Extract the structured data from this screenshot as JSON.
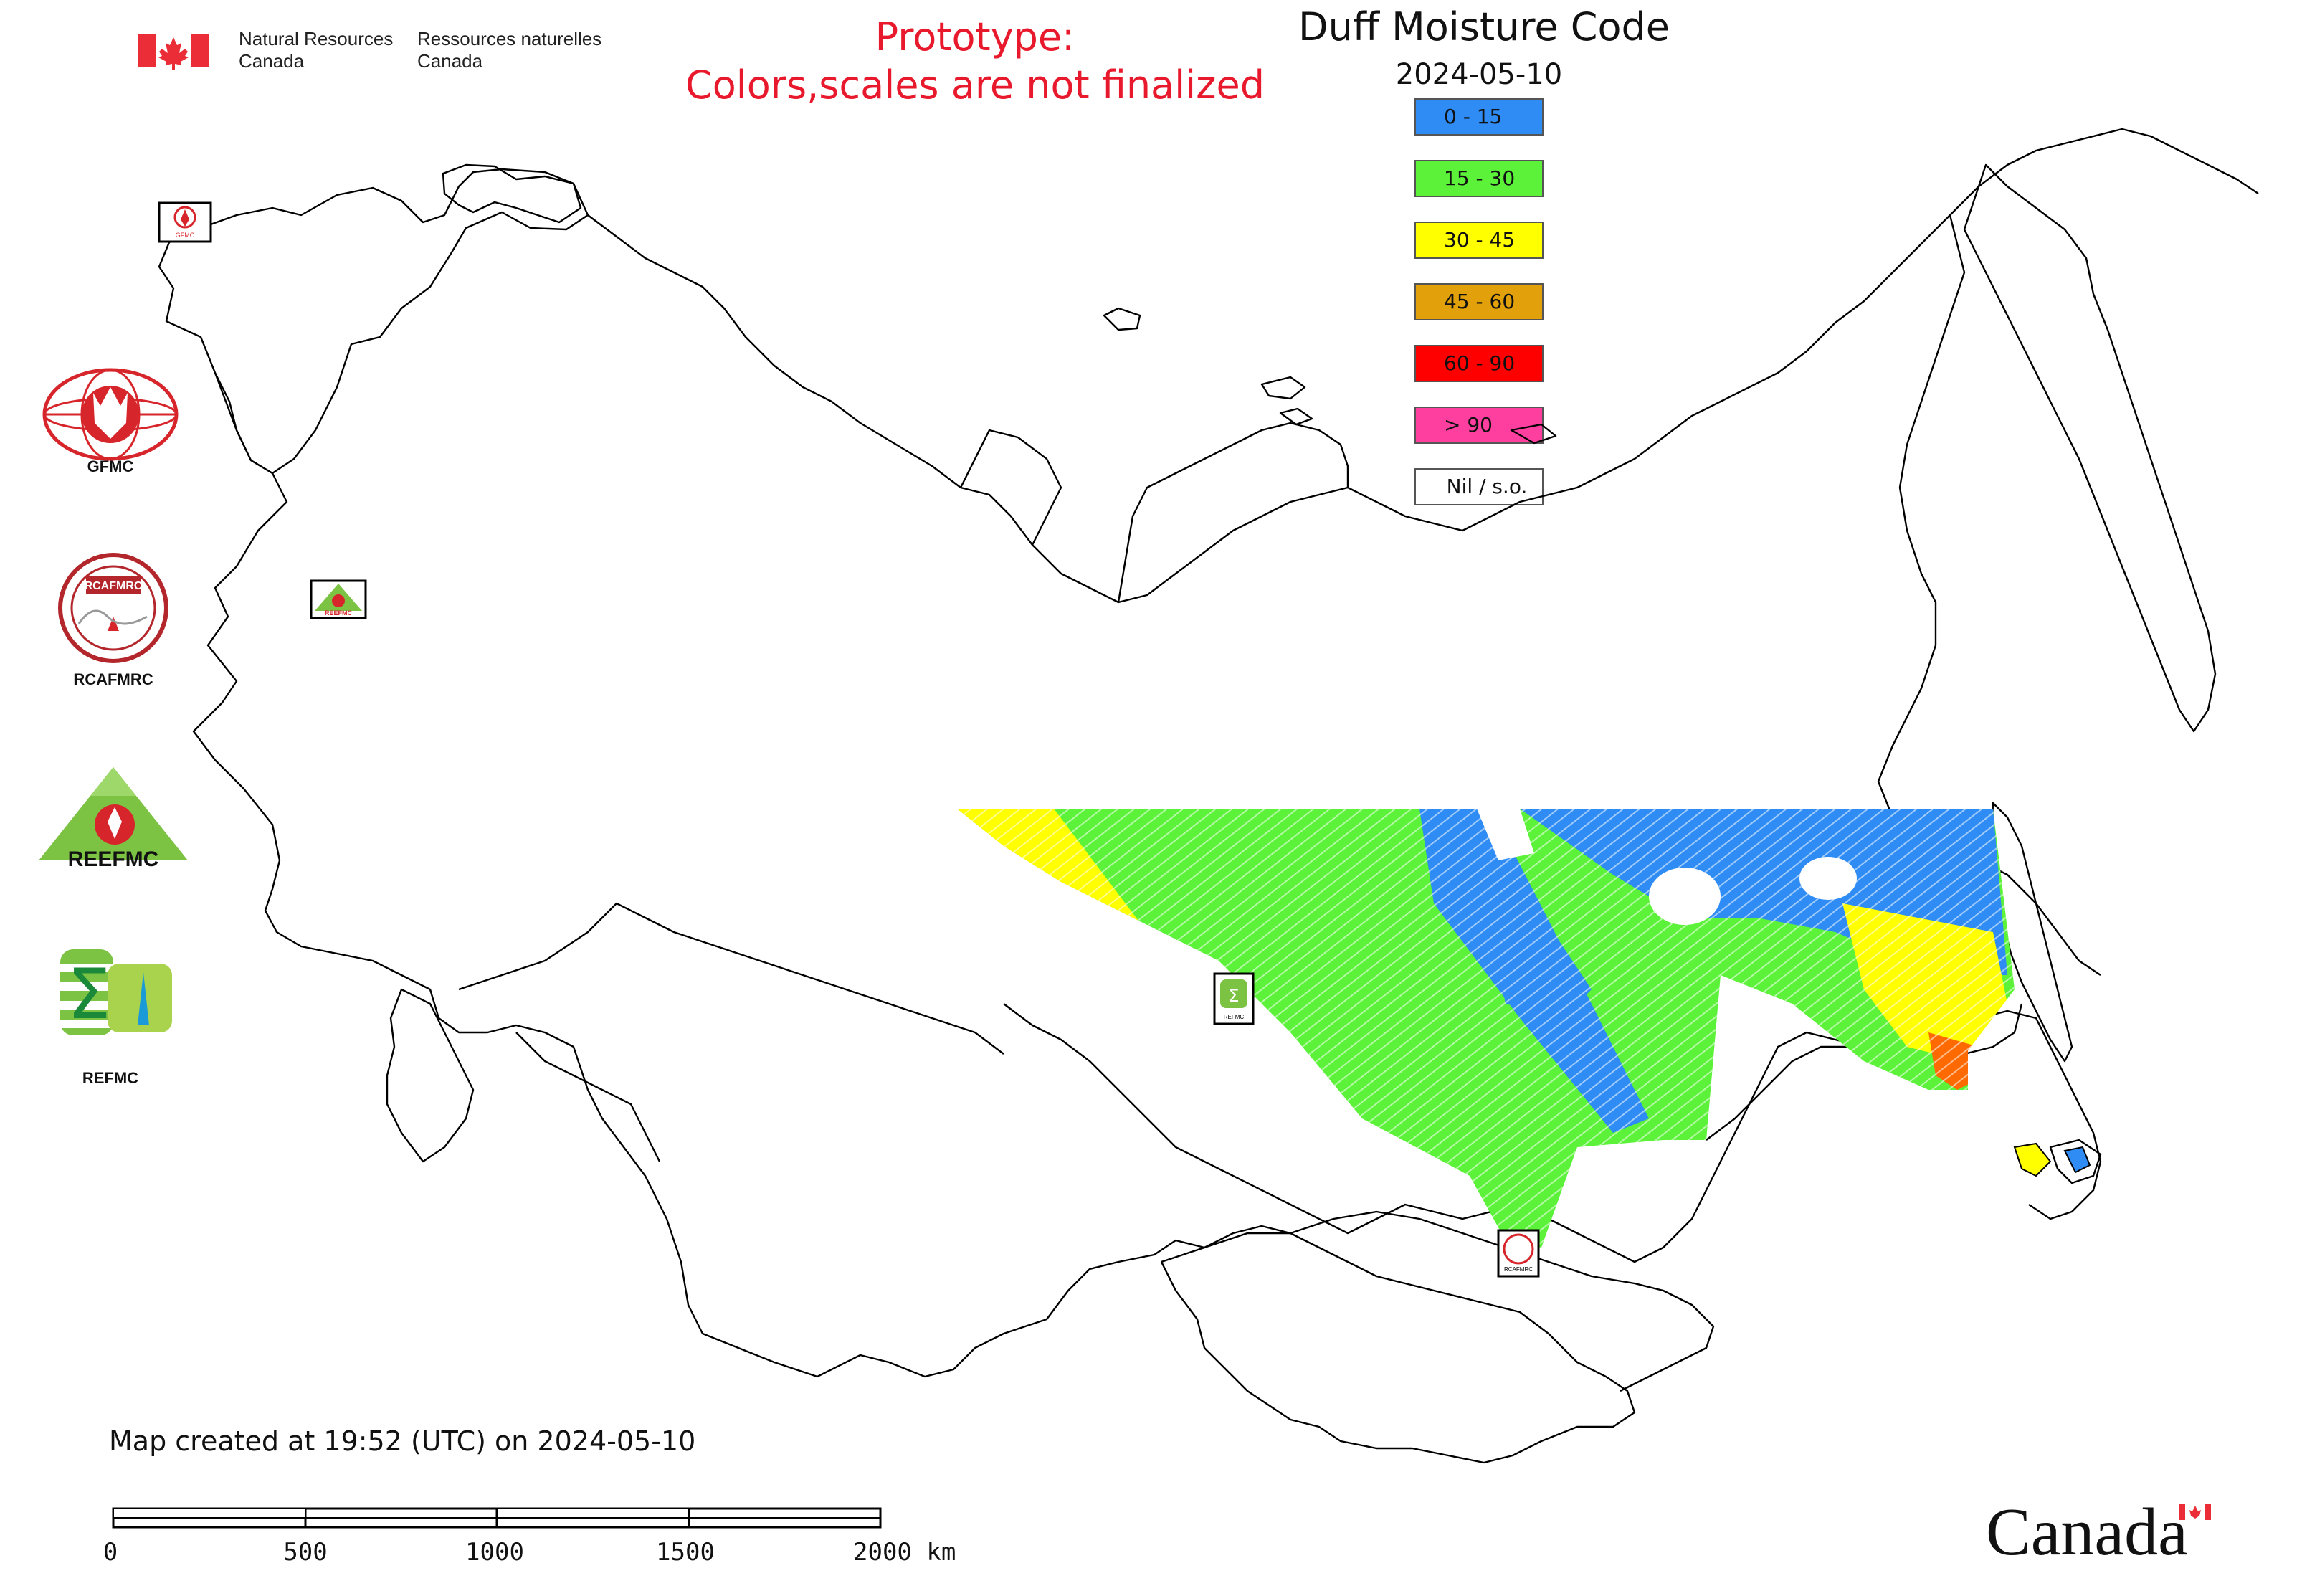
{
  "header": {
    "org_en": [
      "Natural Resources",
      "Canada"
    ],
    "org_fr": [
      "Ressources naturelles",
      "Canada"
    ],
    "prototype_line1": "Prototype:",
    "prototype_line2": "Colors,scales are not finalized"
  },
  "map": {
    "title": "Duff Moisture Code",
    "date": "2024-05-10",
    "legend": [
      {
        "label": "0 - 15",
        "color": "#2e8cf4"
      },
      {
        "label": "15 - 30",
        "color": "#5cf23a"
      },
      {
        "label": "30 - 45",
        "color": "#ffff00"
      },
      {
        "label": "45 - 60",
        "color": "#e2a10a"
      },
      {
        "label": "60 - 90",
        "color": "#ff0000"
      },
      {
        "label": "> 90",
        "color": "#ff3fa0"
      },
      {
        "label": "Nil / s.o.",
        "color": "#ffffff"
      }
    ],
    "footer_text": "Map created at 19:52 (UTC) on 2024-05-10",
    "scalebar_labels": [
      "0",
      "500",
      "1000",
      "1500",
      "2000 km"
    ],
    "wordmark": "Canada"
  },
  "sidebar_logos": [
    {
      "icon": "gfmc-globe-fire-logo",
      "label": "GFMC"
    },
    {
      "icon": "rcafmrc-seal-logo",
      "label": "RCAFMRC"
    },
    {
      "icon": "reefmc-triangle-logo",
      "label": "REEFMC",
      "wordmark": "REEFMC"
    },
    {
      "icon": "refmc-sigma-logo",
      "label": "REFMC"
    }
  ],
  "map_markers": [
    {
      "icon": "gfmc-marker-icon",
      "label": "GFMC"
    },
    {
      "icon": "reefmc-marker-icon",
      "label": "REEFMC"
    },
    {
      "icon": "refmc-marker-icon",
      "label": "REFMC"
    },
    {
      "icon": "rcafmrc-marker-icon",
      "label": "RCAFMRC"
    }
  ],
  "colors": {
    "prototype_red": "#e8192c",
    "flag_red": "#eb2d37",
    "gfmc_red": "#d7262b",
    "reefmc_green": "#7cc243"
  }
}
